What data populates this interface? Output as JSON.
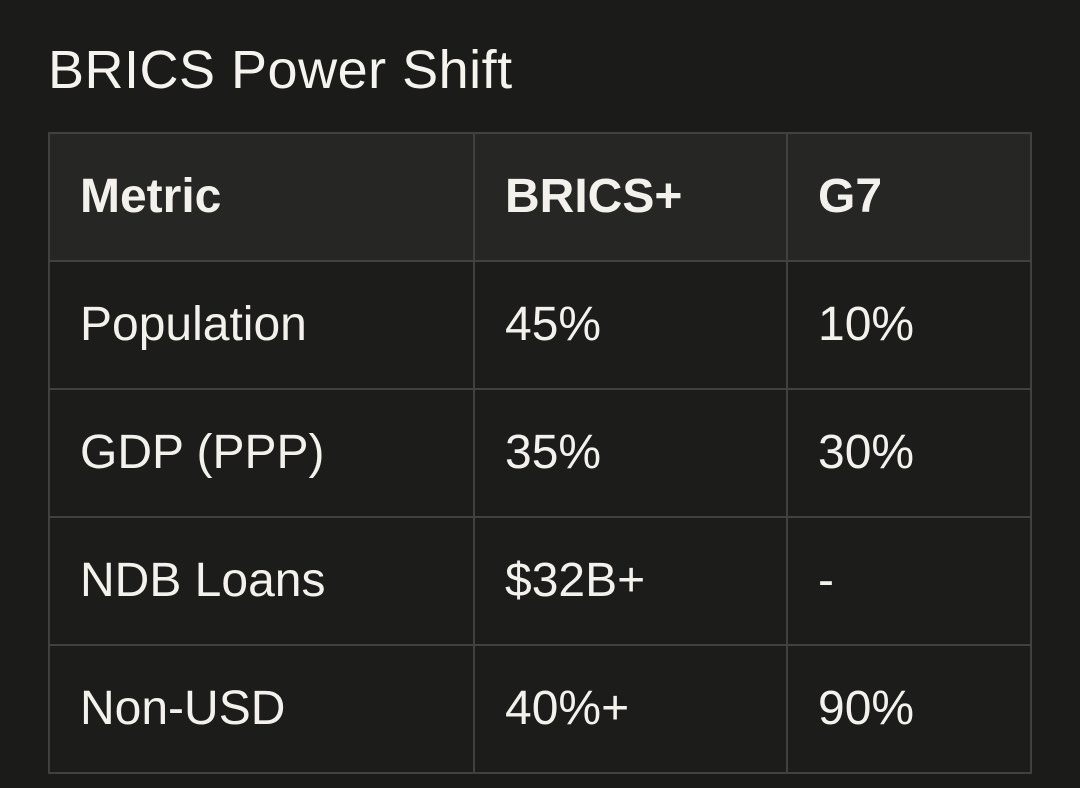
{
  "title": "BRICS Power Shift",
  "table": {
    "headers": [
      "Metric",
      "BRICS+",
      "G7"
    ],
    "rows": [
      [
        "Population",
        "45%",
        "10%"
      ],
      [
        "GDP (PPP)",
        "35%",
        "30%"
      ],
      [
        "NDB Loans",
        "$32B+",
        "-"
      ],
      [
        "Non-USD",
        "40%+",
        "90%"
      ]
    ]
  },
  "chart_data": {
    "type": "table",
    "title": "BRICS Power Shift",
    "columns": [
      "Metric",
      "BRICS+",
      "G7"
    ],
    "rows": [
      {
        "metric": "Population",
        "brics_plus": "45%",
        "g7": "10%"
      },
      {
        "metric": "GDP (PPP)",
        "brics_plus": "35%",
        "g7": "30%"
      },
      {
        "metric": "NDB Loans",
        "brics_plus": "$32B+",
        "g7": "-"
      },
      {
        "metric": "Non-USD",
        "brics_plus": "40%+",
        "g7": "90%"
      }
    ]
  },
  "colors": {
    "page_background": "#1b1b1a",
    "header_cell_background": "#262625",
    "body_cell_background": "#1c1c1b",
    "border": "#414140",
    "text": "#f2f1ec",
    "title_text": "#f4f3ee"
  }
}
